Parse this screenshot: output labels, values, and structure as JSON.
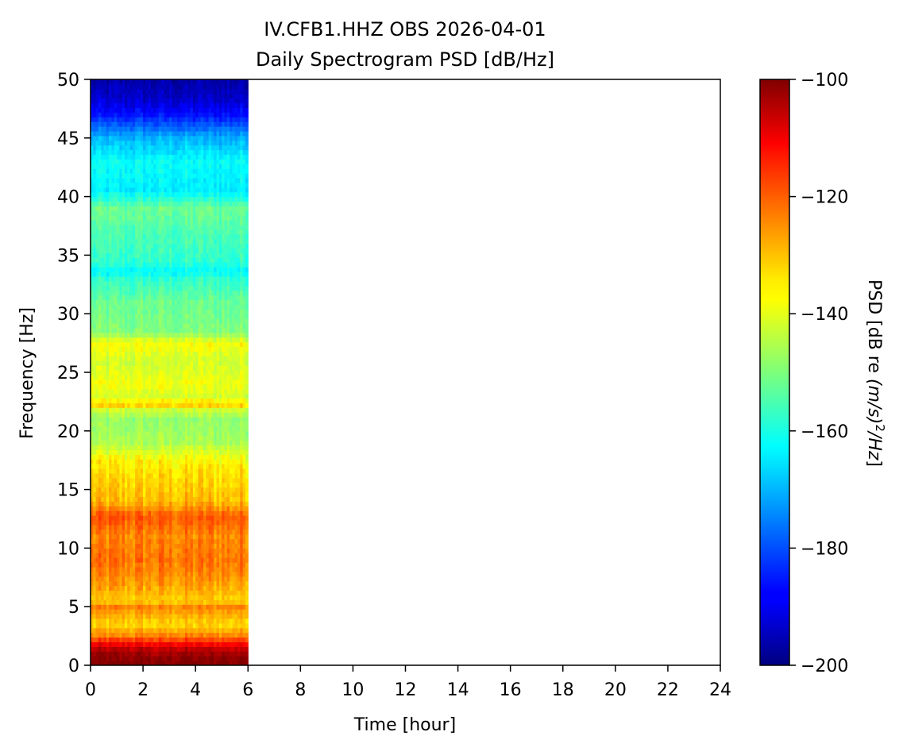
{
  "chart_data": {
    "type": "heatmap",
    "title_line1": "IV.CFB1.HHZ OBS 2026-04-01",
    "title_line2": "Daily Spectrogram PSD [dB/Hz]",
    "xlabel": "Time [hour]",
    "ylabel": "Frequency [Hz]",
    "xlim": [
      0,
      24
    ],
    "ylim": [
      0,
      50
    ],
    "x_ticks": [
      "0",
      "2",
      "4",
      "6",
      "8",
      "10",
      "12",
      "14",
      "16",
      "18",
      "20",
      "22",
      "24"
    ],
    "y_ticks": [
      "0",
      "5",
      "10",
      "15",
      "20",
      "25",
      "30",
      "35",
      "40",
      "45",
      "50"
    ],
    "data_time_range_hours": [
      0,
      6
    ],
    "colormap": "jet",
    "colorbar": {
      "label_prefix": "PSD [dB re ",
      "label_italic": "(m/s)",
      "label_sup": "2",
      "label_suffix_italic": "/Hz",
      "label_end": "]",
      "min": -200,
      "max": -100,
      "ticks": [
        "−100",
        "−120",
        "−140",
        "−160",
        "−180",
        "−200"
      ],
      "tick_values": [
        -100,
        -120,
        -140,
        -160,
        -180,
        -200
      ]
    },
    "psd_profile_db": {
      "freq_hz": [
        0,
        0.8,
        1.6,
        2.5,
        3.5,
        4.6,
        4.9,
        5.5,
        7,
        9,
        11,
        12.8,
        13.2,
        14,
        16,
        17.5,
        19,
        21,
        22,
        22.3,
        22.8,
        24,
        26,
        27.5,
        28.5,
        31,
        33,
        33.6,
        34.5,
        37,
        39,
        40.5,
        43,
        45,
        47,
        48.5,
        50
      ],
      "psd_db": [
        -100,
        -102,
        -108,
        -125,
        -134,
        -128,
        -124,
        -133,
        -128,
        -124,
        -126,
        -121,
        -125,
        -131,
        -134,
        -137,
        -146,
        -148,
        -141,
        -130,
        -142,
        -139,
        -142,
        -138,
        -150,
        -152,
        -158,
        -163,
        -158,
        -155,
        -152,
        -164,
        -162,
        -170,
        -186,
        -193,
        -196
      ]
    }
  }
}
